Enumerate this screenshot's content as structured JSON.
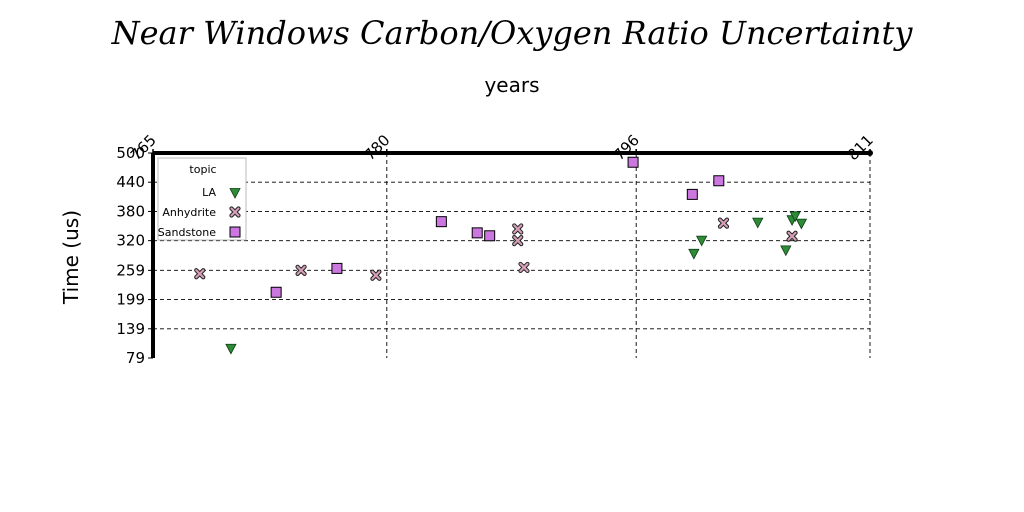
{
  "chart_data": {
    "type": "scatter",
    "title": "Near Windows Carbon/Oxygen Ratio Uncertainty",
    "xlabel": "years",
    "ylabel": "Time (us)",
    "xlim": [
      765,
      811
    ],
    "ylim": [
      79,
      500
    ],
    "x_ticks": [
      "765",
      "780",
      "796",
      "811"
    ],
    "y_ticks": [
      "500",
      "440",
      "380",
      "320",
      "259",
      "199",
      "139",
      "79"
    ],
    "x_axis_position": "top",
    "grid": "dashed",
    "legend": {
      "title": "topic",
      "placement": "top-left"
    },
    "series": [
      {
        "name": "LA",
        "marker": "triangle-down",
        "color": "#2e8b37",
        "points": [
          {
            "x": 770.0,
            "y": 98
          },
          {
            "x": 799.7,
            "y": 293
          },
          {
            "x": 800.2,
            "y": 320
          },
          {
            "x": 803.8,
            "y": 357
          },
          {
            "x": 805.6,
            "y": 300
          },
          {
            "x": 806.0,
            "y": 362
          },
          {
            "x": 806.2,
            "y": 370
          },
          {
            "x": 806.6,
            "y": 355
          }
        ]
      },
      {
        "name": "Anhydrite",
        "marker": "x",
        "color": "#d4a0b8",
        "points": [
          {
            "x": 768.0,
            "y": 252
          },
          {
            "x": 774.5,
            "y": 259
          },
          {
            "x": 779.3,
            "y": 249
          },
          {
            "x": 788.4,
            "y": 344
          },
          {
            "x": 788.4,
            "y": 320
          },
          {
            "x": 788.8,
            "y": 265
          },
          {
            "x": 801.6,
            "y": 356
          },
          {
            "x": 806.0,
            "y": 329
          }
        ]
      },
      {
        "name": "Sandstone",
        "marker": "square",
        "color": "#cc77e0",
        "points": [
          {
            "x": 772.9,
            "y": 214
          },
          {
            "x": 776.8,
            "y": 263
          },
          {
            "x": 783.5,
            "y": 359
          },
          {
            "x": 785.8,
            "y": 336
          },
          {
            "x": 786.6,
            "y": 330
          },
          {
            "x": 795.8,
            "y": 481
          },
          {
            "x": 799.6,
            "y": 415
          },
          {
            "x": 801.3,
            "y": 443
          }
        ]
      }
    ]
  }
}
